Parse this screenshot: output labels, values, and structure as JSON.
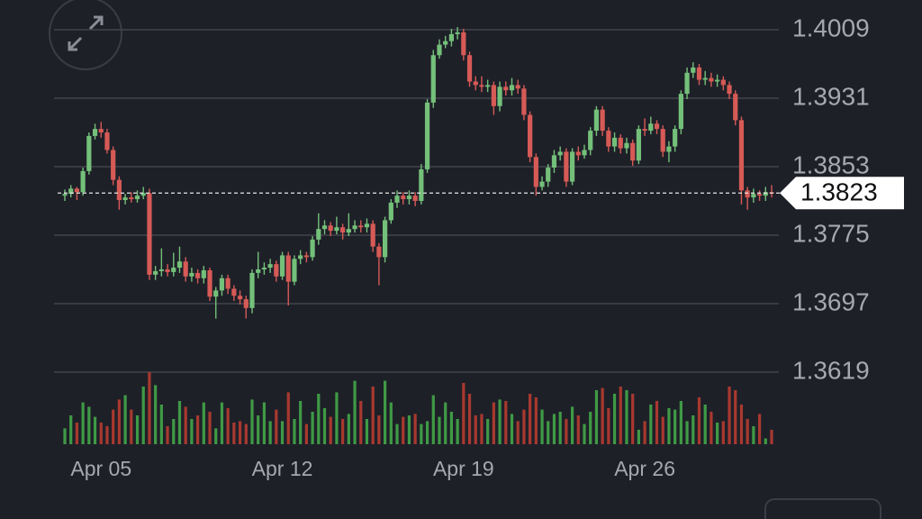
{
  "chart_data": {
    "type": "candlestick",
    "categories": [
      null,
      null,
      null,
      null,
      null,
      null,
      "Apr 05",
      null,
      null,
      null,
      null,
      null,
      null,
      null,
      null,
      null,
      null,
      null,
      null,
      null,
      null,
      null,
      null,
      null,
      null,
      null,
      null,
      null,
      null,
      null,
      null,
      null,
      null,
      null,
      null,
      null,
      "Apr 12",
      null,
      null,
      null,
      null,
      null,
      null,
      null,
      null,
      null,
      null,
      null,
      null,
      null,
      null,
      null,
      null,
      null,
      null,
      null,
      null,
      null,
      null,
      null,
      null,
      null,
      null,
      null,
      null,
      null,
      "Apr 19",
      null,
      null,
      null,
      null,
      null,
      null,
      null,
      null,
      null,
      null,
      null,
      null,
      null,
      null,
      null,
      null,
      null,
      null,
      null,
      null,
      null,
      null,
      null,
      null,
      null,
      null,
      null,
      null,
      null,
      "Apr 26",
      null,
      null,
      null,
      null,
      null,
      null,
      null,
      null,
      null,
      null,
      null,
      null,
      null,
      null,
      null,
      null,
      null,
      null,
      null,
      null,
      null
    ],
    "open": [
      1.382,
      1.3822,
      1.3828,
      1.3824,
      1.3848,
      1.3888,
      1.3896,
      1.3892,
      1.3872,
      1.3838,
      1.3815,
      1.3818,
      1.3816,
      1.382,
      1.3823,
      1.373,
      1.3734,
      1.3736,
      1.3733,
      1.3738,
      1.3745,
      1.3728,
      1.3732,
      1.3726,
      1.3735,
      1.3705,
      1.3712,
      1.3726,
      1.3714,
      1.3706,
      1.3702,
      1.3692,
      1.3732,
      1.3736,
      1.3738,
      1.3742,
      1.3728,
      1.3752,
      1.3722,
      1.3748,
      1.3752,
      1.375,
      1.377,
      1.3782,
      1.3786,
      1.378,
      1.3784,
      1.3778,
      1.3782,
      1.3786,
      1.3784,
      1.3788,
      1.3762,
      1.375,
      1.3792,
      1.3812,
      1.382,
      1.3816,
      1.382,
      1.3814,
      1.385,
      1.3926,
      1.398,
      1.3992,
      1.3996,
      1.4004,
      1.4006,
      1.398,
      1.395,
      1.3946,
      1.3944,
      1.3946,
      1.3922,
      1.3944,
      1.394,
      1.3946,
      1.3942,
      1.3912,
      1.3864,
      1.383,
      1.3836,
      1.3852,
      1.3866,
      1.387,
      1.3836,
      1.387,
      1.3866,
      1.3872,
      1.3894,
      1.3918,
      1.3894,
      1.3876,
      1.3886,
      1.3874,
      1.388,
      1.386,
      1.3896,
      1.3894,
      1.3902,
      1.3896,
      1.387,
      1.3876,
      1.3896,
      1.3936,
      1.396,
      1.3966,
      1.3952,
      1.3954,
      1.395,
      1.3952,
      1.3946,
      1.3936,
      1.3906,
      1.3826,
      1.3818,
      1.3822,
      1.382,
      1.3824
    ],
    "high": [
      1.3827,
      1.3832,
      1.383,
      1.3852,
      1.3892,
      1.3902,
      1.3904,
      1.3896,
      1.3876,
      1.3842,
      1.3822,
      1.3824,
      1.3826,
      1.383,
      1.3828,
      1.374,
      1.376,
      1.3742,
      1.3755,
      1.3762,
      1.375,
      1.3738,
      1.3736,
      1.374,
      1.3738,
      1.3716,
      1.373,
      1.373,
      1.3718,
      1.3712,
      1.3706,
      1.3736,
      1.3756,
      1.3744,
      1.3748,
      1.3746,
      1.3756,
      1.3756,
      1.3752,
      1.3758,
      1.3756,
      1.3774,
      1.38,
      1.3792,
      1.379,
      1.3796,
      1.3788,
      1.38,
      1.3792,
      1.3792,
      1.3794,
      1.3792,
      1.3766,
      1.3796,
      1.3816,
      1.3826,
      1.3824,
      1.3826,
      1.3824,
      1.3856,
      1.393,
      1.3986,
      1.3998,
      1.4002,
      1.401,
      1.4012,
      1.401,
      1.3984,
      1.3956,
      1.3956,
      1.3952,
      1.395,
      1.395,
      1.395,
      1.3954,
      1.3952,
      1.3946,
      1.3916,
      1.3868,
      1.3842,
      1.3856,
      1.3872,
      1.3876,
      1.3874,
      1.3874,
      1.3876,
      1.3878,
      1.3898,
      1.3922,
      1.3922,
      1.3898,
      1.3892,
      1.389,
      1.3886,
      1.3884,
      1.39,
      1.3908,
      1.391,
      1.3906,
      1.39,
      1.3882,
      1.39,
      1.394,
      1.3966,
      1.3972,
      1.397,
      1.3962,
      1.396,
      1.3958,
      1.3956,
      1.395,
      1.394,
      1.391,
      1.383,
      1.3828,
      1.3826,
      1.383,
      1.3832
    ],
    "low": [
      1.3814,
      1.3818,
      1.3815,
      1.382,
      1.3844,
      1.3884,
      1.3886,
      1.3868,
      1.3832,
      1.3804,
      1.381,
      1.3812,
      1.3812,
      1.3816,
      1.3724,
      1.3724,
      1.3728,
      1.3728,
      1.3728,
      1.3732,
      1.3722,
      1.3722,
      1.372,
      1.372,
      1.37,
      1.368,
      1.3706,
      1.3708,
      1.37,
      1.3696,
      1.368,
      1.3686,
      1.3726,
      1.373,
      1.3732,
      1.3722,
      1.3724,
      1.3695,
      1.3718,
      1.3742,
      1.3744,
      1.3746,
      1.3764,
      1.3776,
      1.3774,
      1.3776,
      1.377,
      1.3774,
      1.3778,
      1.3778,
      1.3778,
      1.3756,
      1.3718,
      1.3744,
      1.3788,
      1.3806,
      1.381,
      1.381,
      1.3808,
      1.381,
      1.3846,
      1.392,
      1.3976,
      1.3988,
      1.399,
      1.3998,
      1.3974,
      1.3944,
      1.394,
      1.3938,
      1.3938,
      1.3912,
      1.3916,
      1.3934,
      1.3934,
      1.3936,
      1.3906,
      1.3858,
      1.382,
      1.3826,
      1.383,
      1.3846,
      1.386,
      1.383,
      1.3832,
      1.386,
      1.3862,
      1.3866,
      1.3888,
      1.3888,
      1.387,
      1.387,
      1.3868,
      1.3868,
      1.3854,
      1.3856,
      1.3888,
      1.389,
      1.389,
      1.3864,
      1.3858,
      1.387,
      1.389,
      1.393,
      1.3954,
      1.3946,
      1.3946,
      1.3944,
      1.3944,
      1.394,
      1.393,
      1.39,
      1.381,
      1.3804,
      1.3812,
      1.3814,
      1.3814,
      1.3818
    ],
    "close": [
      1.3822,
      1.3828,
      1.3824,
      1.3848,
      1.3888,
      1.3896,
      1.3892,
      1.3872,
      1.3838,
      1.3815,
      1.3818,
      1.3816,
      1.382,
      1.3823,
      1.373,
      1.3734,
      1.3736,
      1.3733,
      1.3738,
      1.3745,
      1.3728,
      1.3732,
      1.3726,
      1.3735,
      1.3705,
      1.3712,
      1.3726,
      1.3714,
      1.3706,
      1.3702,
      1.3692,
      1.3732,
      1.3736,
      1.3738,
      1.3742,
      1.3728,
      1.3752,
      1.3722,
      1.3748,
      1.3752,
      1.375,
      1.377,
      1.3782,
      1.3786,
      1.378,
      1.3784,
      1.3778,
      1.3782,
      1.3786,
      1.3784,
      1.3788,
      1.3762,
      1.375,
      1.3792,
      1.3812,
      1.382,
      1.3816,
      1.382,
      1.3814,
      1.385,
      1.3926,
      1.398,
      1.3992,
      1.3996,
      1.4004,
      1.4006,
      1.398,
      1.395,
      1.3946,
      1.3944,
      1.3946,
      1.3922,
      1.3944,
      1.394,
      1.3946,
      1.3942,
      1.3912,
      1.3864,
      1.383,
      1.3836,
      1.3852,
      1.3866,
      1.387,
      1.3836,
      1.387,
      1.3866,
      1.3872,
      1.3894,
      1.3918,
      1.3894,
      1.3876,
      1.3886,
      1.3874,
      1.388,
      1.386,
      1.3896,
      1.3894,
      1.3902,
      1.3896,
      1.387,
      1.3876,
      1.3896,
      1.3936,
      1.396,
      1.3966,
      1.3952,
      1.3954,
      1.395,
      1.3952,
      1.3946,
      1.3936,
      1.3906,
      1.3826,
      1.3818,
      1.3822,
      1.382,
      1.3824,
      1.3823
    ],
    "volume": [
      22,
      40,
      30,
      58,
      52,
      38,
      30,
      25,
      48,
      62,
      68,
      48,
      40,
      80,
      100,
      82,
      55,
      25,
      35,
      60,
      52,
      35,
      40,
      58,
      45,
      22,
      58,
      50,
      30,
      32,
      28,
      62,
      40,
      58,
      32,
      48,
      32,
      72,
      35,
      60,
      28,
      45,
      70,
      50,
      38,
      72,
      35,
      42,
      88,
      60,
      35,
      80,
      40,
      88,
      58,
      28,
      38,
      40,
      42,
      28,
      32,
      68,
      38,
      58,
      45,
      35,
      85,
      70,
      40,
      42,
      35,
      58,
      62,
      60,
      42,
      32,
      48,
      70,
      65,
      48,
      32,
      42,
      45,
      35,
      52,
      40,
      28,
      45,
      75,
      78,
      50,
      70,
      80,
      75,
      70,
      20,
      32,
      55,
      60,
      38,
      50,
      48,
      60,
      32,
      40,
      65,
      55,
      45,
      30,
      32,
      80,
      75,
      55,
      35,
      25,
      42,
      8,
      20
    ],
    "ylim": [
      1.3619,
      1.4009
    ],
    "yticks": [
      1.4009,
      1.3931,
      1.3853,
      1.3775,
      1.3697,
      1.3619
    ],
    "volume_ylim": [
      0,
      100
    ],
    "last_price": 1.3823,
    "grid": true,
    "up_color": "#74c07a",
    "down_color": "#d65a56",
    "volume_up_color": "#3f9a45",
    "volume_down_color": "#a8392f"
  }
}
